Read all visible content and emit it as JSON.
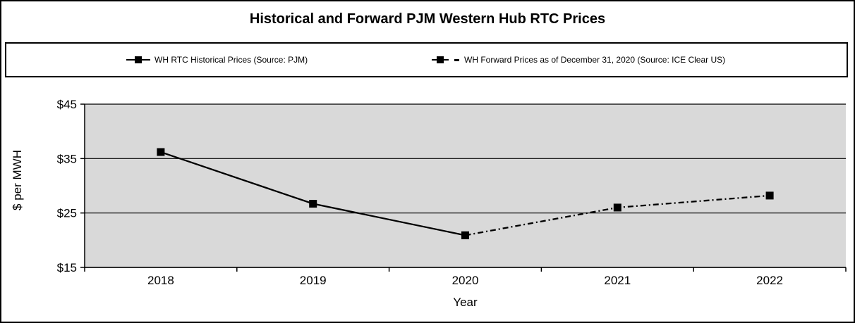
{
  "window": {
    "background": "#ffffff",
    "border_color": "#000000"
  },
  "chart_data": {
    "type": "line",
    "title": "Historical and Forward PJM Western Hub RTC Prices",
    "xlabel": "Year",
    "ylabel": "$ per MWH",
    "categories": [
      "2018",
      "2019",
      "2020",
      "2021",
      "2022"
    ],
    "ylim": [
      15,
      45
    ],
    "yticks": [
      15,
      25,
      35,
      45
    ],
    "ytick_labels": [
      "$15",
      "$25",
      "$35",
      "$45"
    ],
    "grid": "horizontal gridlines every $10",
    "legend_position": "top full-width bordered box",
    "colors": {
      "plot_background": "#d9d9d9",
      "line": "#000000",
      "gridline": "#000000",
      "axis": "#000000"
    },
    "series": [
      {
        "name": "WH RTC Historical Prices (Source: PJM)",
        "line_style": "solid",
        "marker": "filled-square",
        "x": [
          "2018",
          "2019",
          "2020"
        ],
        "values": [
          36.2,
          26.7,
          20.9
        ]
      },
      {
        "name": "WH Forward Prices as of December 31, 2020 (Source: ICE Clear US)",
        "line_style": "dash-dot",
        "marker": "filled-square",
        "x": [
          "2020",
          "2021",
          "2022"
        ],
        "values": [
          20.9,
          26.0,
          28.2
        ]
      }
    ]
  }
}
